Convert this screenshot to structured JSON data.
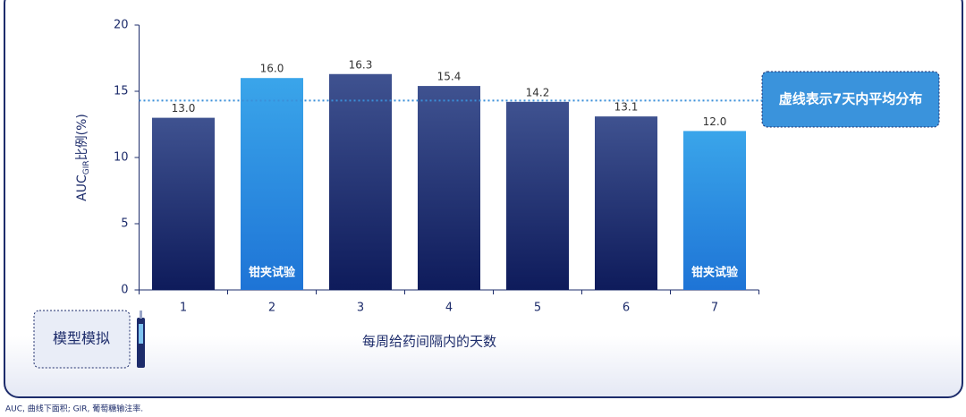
{
  "chart_data": {
    "type": "bar",
    "categories": [
      "1",
      "2",
      "3",
      "4",
      "5",
      "6",
      "7"
    ],
    "values": [
      13.0,
      16.0,
      16.3,
      15.4,
      14.2,
      13.1,
      12.0
    ],
    "value_labels": [
      "13.0",
      "16.0",
      "16.3",
      "15.4",
      "14.2",
      "13.1",
      "12.0"
    ],
    "bar_labels": [
      null,
      "钳夹试验",
      null,
      null,
      null,
      null,
      "钳夹试验"
    ],
    "colors": [
      "#3f5290",
      "#3aa5ea",
      "#3f5290",
      "#3f5290",
      "#3f5290",
      "#3f5290",
      "#3aa5ea"
    ],
    "gradient_bottom_colors": [
      "#0e1b5b",
      "#1e74d6",
      "#0e1b5b",
      "#0e1b5b",
      "#0e1b5b",
      "#0e1b5b",
      "#1e74d6"
    ],
    "ylim": [
      0,
      20
    ],
    "yticks": [
      0,
      5,
      10,
      15,
      20
    ],
    "grid": false,
    "y_label": {
      "main": "AUC",
      "subscript": "GIR",
      "rest": "比例(%)"
    },
    "x_label": "每周给药间隔内的天数",
    "reference_line": {
      "value": 14.3,
      "label": "虚线表示7天内平均分布",
      "color": "#3a8fd9"
    },
    "side_label": "模型模拟"
  },
  "footnote": "AUC, 曲线下面积; GIR, 葡萄糖输注率."
}
